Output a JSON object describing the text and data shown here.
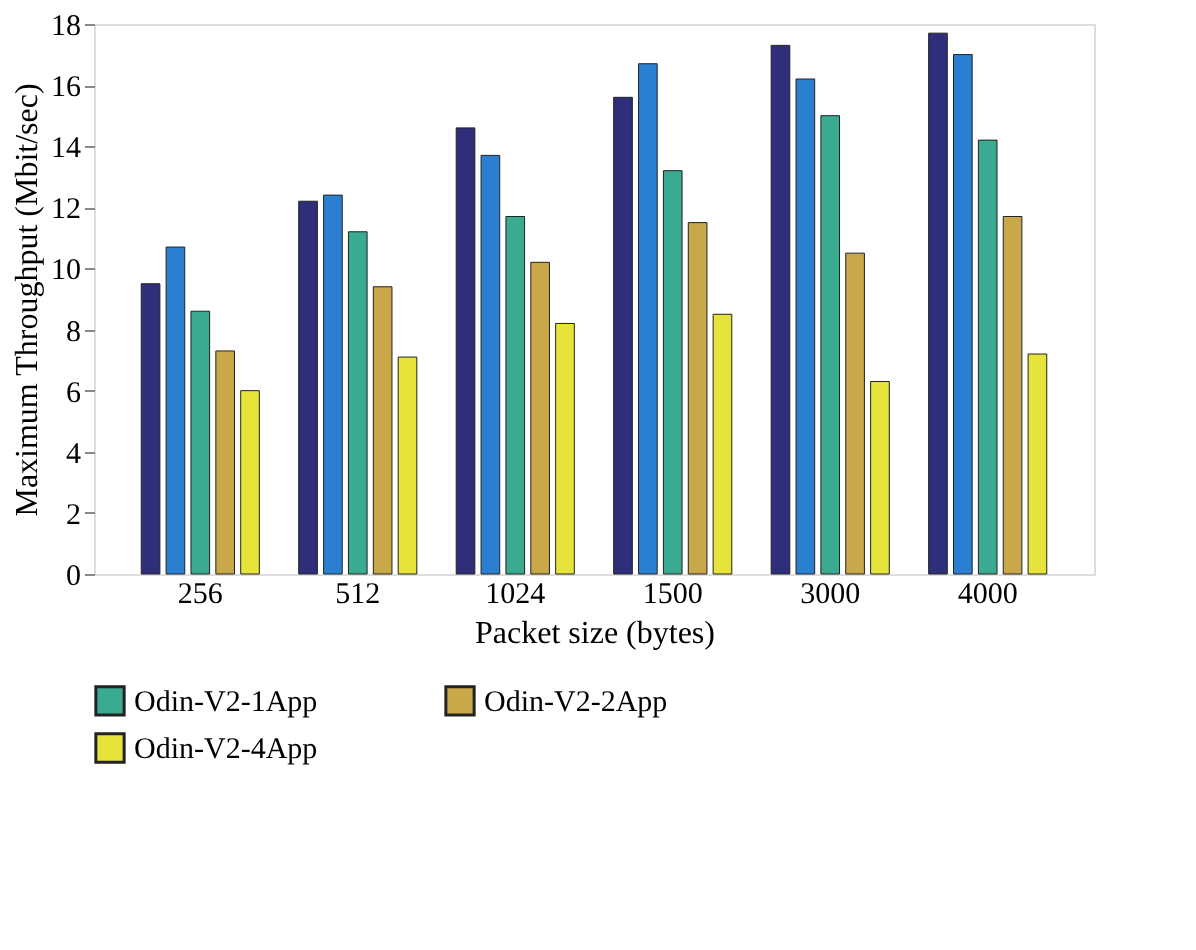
{
  "chart_data": {
    "type": "bar",
    "xlabel": "Packet size (bytes)",
    "ylabel": "Maximum Throughput (Mbit/sec)",
    "categories": [
      "256",
      "512",
      "1024",
      "1500",
      "3000",
      "4000"
    ],
    "series": [
      {
        "color": "#2e2e7a",
        "values": [
          9.5,
          12.2,
          14.6,
          15.6,
          17.3,
          17.7
        ]
      },
      {
        "color": "#2b7fd0",
        "values": [
          10.7,
          12.4,
          13.7,
          16.7,
          16.2,
          17.0
        ]
      },
      {
        "name": "Odin-V2-1App",
        "color": "#3aaa90",
        "values": [
          8.6,
          11.2,
          11.7,
          13.2,
          15.0,
          14.2
        ]
      },
      {
        "name": "Odin-V2-2App",
        "color": "#c9a84a",
        "values": [
          7.3,
          9.4,
          10.2,
          11.5,
          10.5,
          11.7
        ]
      },
      {
        "name": "Odin-V2-4App",
        "color": "#e6e33a",
        "values": [
          6.0,
          7.1,
          8.2,
          8.5,
          6.3,
          7.2
        ]
      }
    ],
    "ylim": [
      0,
      18
    ],
    "yticks": [
      0,
      2,
      4,
      6,
      8,
      10,
      12,
      14,
      16,
      18
    ],
    "grid": false,
    "legend": "bottom"
  }
}
